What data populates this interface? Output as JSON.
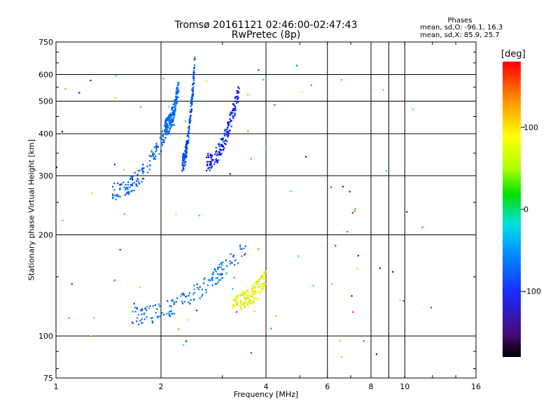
{
  "chart_data": {
    "type": "scatter",
    "title": "Tromsø 20161121 02:46:00-02:47:43",
    "subtitle": "RwPretec (8p)",
    "xlabel": "Frequency [MHz]",
    "ylabel": "Stationary phase Virtual Height [km]",
    "x_scale": "log",
    "y_scale": "log",
    "xlim": [
      1,
      16
    ],
    "ylim": [
      75,
      750
    ],
    "x_ticks": [
      1,
      2,
      4,
      6,
      8,
      10,
      16
    ],
    "x_minor_ticks": [
      9
    ],
    "y_ticks": [
      75,
      100,
      200,
      300,
      400,
      500,
      600,
      750
    ],
    "grid": true,
    "phases": {
      "title": "Phases",
      "o_mode": "mean, sd,O: -96.1, 16.3",
      "x_mode": "mean, sd,X: 85.9, 25.7"
    },
    "colorbar": {
      "label": "[deg]",
      "range": [
        -180,
        180
      ],
      "ticks": [
        100,
        0,
        -100
      ],
      "tick_labels": [
        "100",
        "0",
        "-100"
      ]
    },
    "clusters": [
      {
        "region": "F-layer main trace",
        "f_range": [
          1.45,
          2.2
        ],
        "h_range": [
          270,
          460
        ],
        "phase": -100
      },
      {
        "region": "F-layer trace near 2.5 MHz",
        "f_range": [
          2.3,
          2.5
        ],
        "h_range": [
          330,
          650
        ],
        "phase": -105
      },
      {
        "region": "F-layer upper trace",
        "f_range": [
          2.05,
          2.25
        ],
        "h_range": [
          420,
          560
        ],
        "phase": -95
      },
      {
        "region": "F-layer X-trace",
        "f_range": [
          2.7,
          3.35
        ],
        "h_range": [
          330,
          540
        ],
        "phase": -120
      },
      {
        "region": "E/Es trace",
        "f_range": [
          1.65,
          3.5
        ],
        "h_range": [
          115,
          185
        ],
        "phase": -95
      },
      {
        "region": "E-region X-mode echoes",
        "f_range": [
          3.2,
          4.0
        ],
        "h_range": [
          125,
          150
        ],
        "phase": 100
      }
    ]
  }
}
